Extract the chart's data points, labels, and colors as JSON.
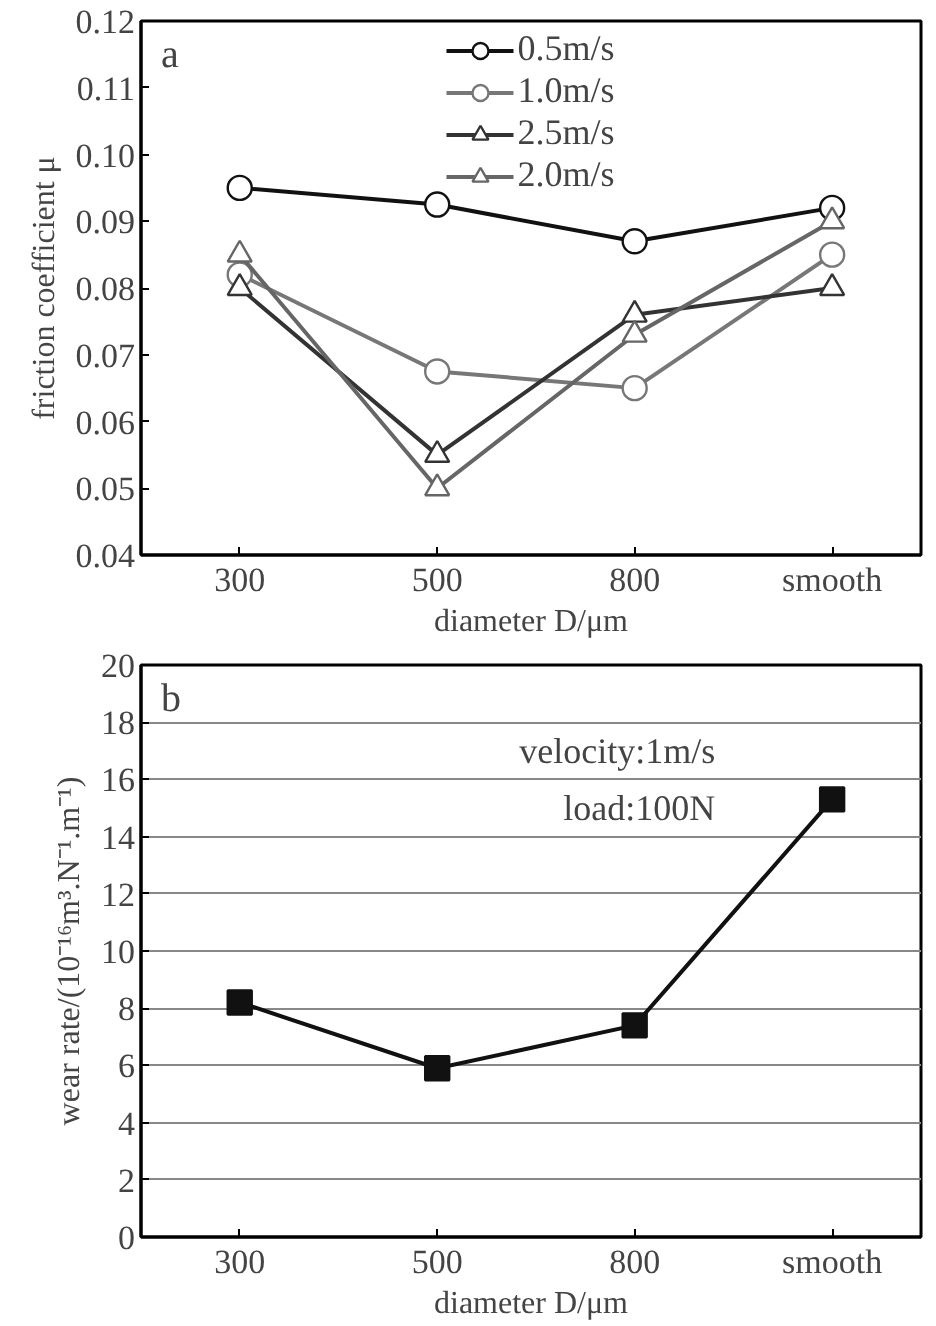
{
  "chart_data": [
    {
      "type": "line",
      "annotations": [
        "a"
      ],
      "xlabel": "diameter D/μm",
      "ylabel": "friction coefficient μ",
      "categories": [
        "300",
        "500",
        "800",
        "smooth"
      ],
      "ylim": [
        0.04,
        0.12
      ],
      "yticks": [
        0.04,
        0.05,
        0.06,
        0.07,
        0.08,
        0.09,
        {
          "value": 0.1,
          "label": "0.10"
        },
        0.11,
        0.12
      ],
      "grid": false,
      "legend": "top",
      "line_style": "solid",
      "series": [
        {
          "name": "0.5m/s",
          "color": "#111111",
          "marker": "circle",
          "values": [
            0.095,
            0.0925,
            0.087,
            0.092
          ]
        },
        {
          "name": "1.0m/s",
          "color": "#777777",
          "marker": "circle",
          "values": [
            0.082,
            0.0675,
            0.065,
            0.085
          ]
        },
        {
          "name": "2.5m/s",
          "color": "#333333",
          "marker": "triangle",
          "values": [
            0.08,
            0.055,
            0.076,
            0.08
          ]
        },
        {
          "name": "2.0m/s",
          "color": "#666666",
          "marker": "triangle",
          "values": [
            0.085,
            0.05,
            0.073,
            0.09
          ]
        }
      ]
    },
    {
      "type": "line",
      "annotations": [
        "b",
        "velocity:1m/s",
        "load:100N"
      ],
      "xlabel": "diameter D/μm",
      "ylabel": "wear rate/(10⁻¹⁶m³.N⁻¹.m⁻¹)",
      "categories": [
        "300",
        "500",
        "800",
        "smooth"
      ],
      "ylim": [
        0,
        20
      ],
      "yticks": [
        0,
        2,
        4,
        6,
        8,
        10,
        12,
        14,
        16,
        18,
        20
      ],
      "grid": "y",
      "marker": "square",
      "line_style": "solid",
      "series": [
        {
          "color": "#111111",
          "values": [
            8.2,
            5.9,
            7.4,
            15.3
          ]
        }
      ]
    }
  ]
}
